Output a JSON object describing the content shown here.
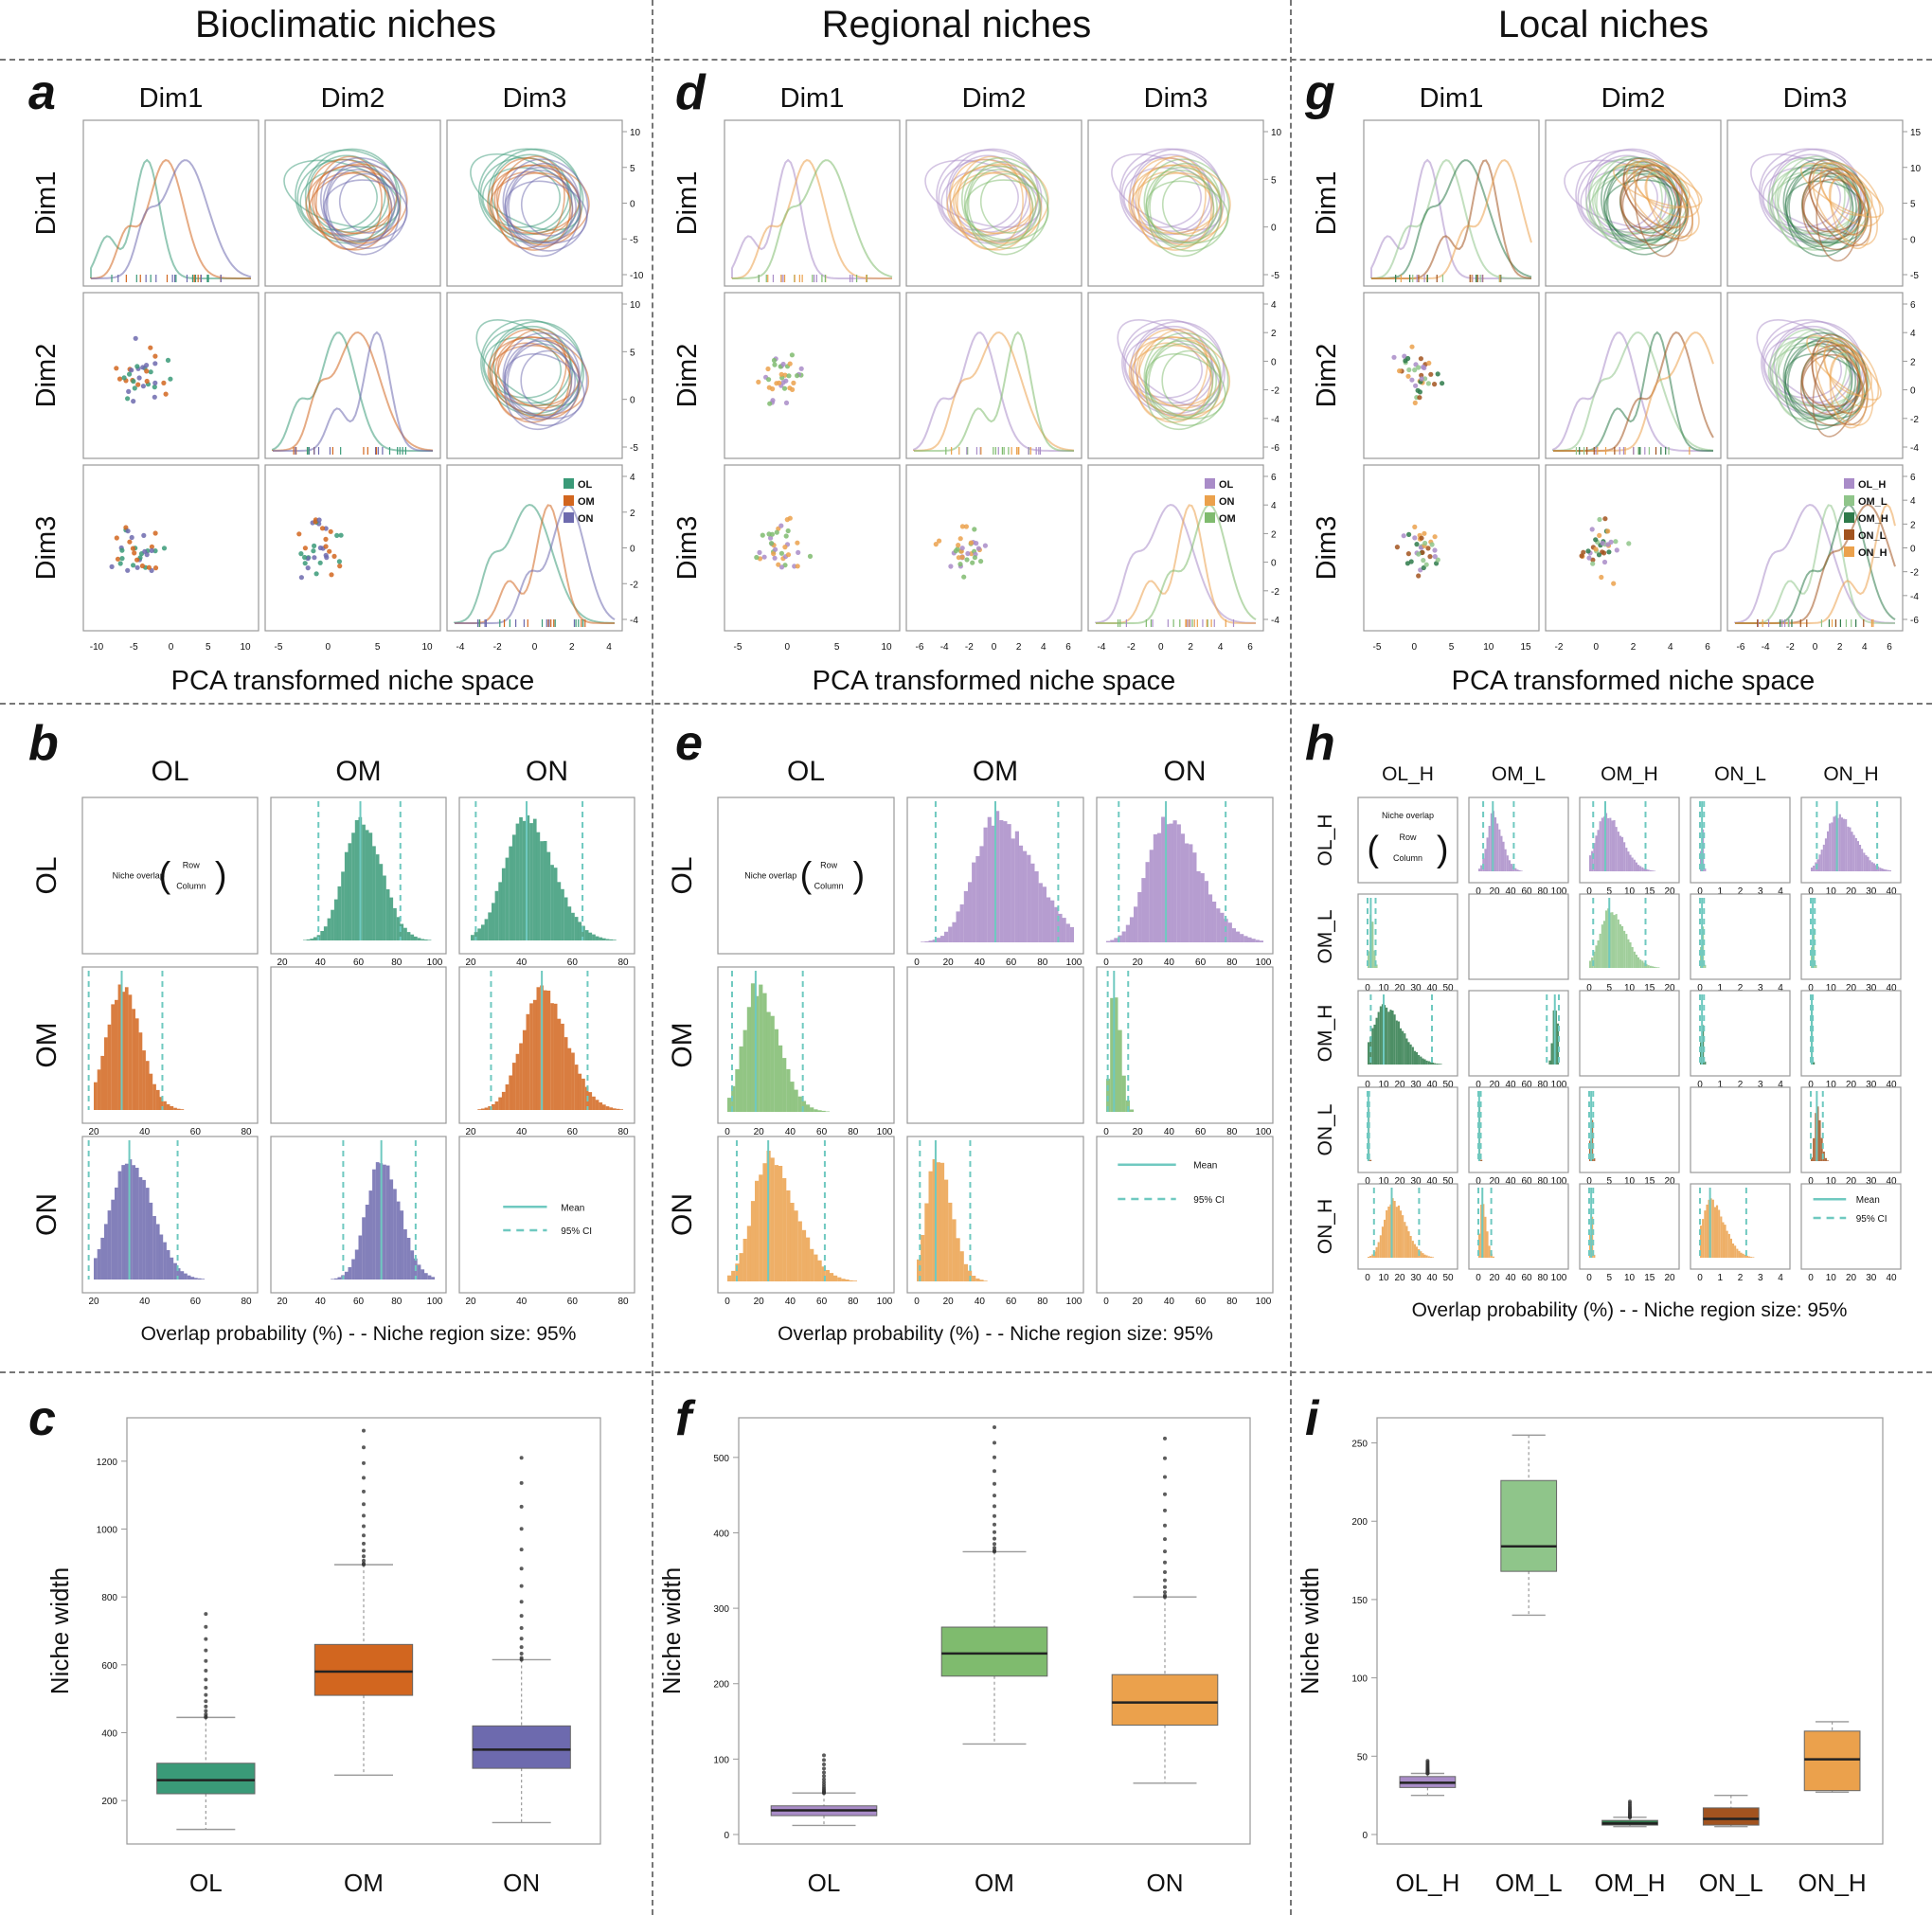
{
  "columns": [
    {
      "title": "Bioclimatic niches"
    },
    {
      "title": "Regional niches"
    },
    {
      "title": "Local niches"
    }
  ],
  "panel_labels": [
    "a",
    "b",
    "c",
    "d",
    "e",
    "f",
    "g",
    "h",
    "i"
  ],
  "dims": [
    "Dim1",
    "Dim2",
    "Dim3"
  ],
  "pca_xlabel": "PCA transformed niche space",
  "overlap_xlabel": "Overlap probability (%) - - Niche region size: 95%",
  "niche_width_ylabel": "Niche width",
  "overlap_note": {
    "label": "Niche overlap",
    "row": "Row",
    "column": "Column"
  },
  "legend_mean": "Mean",
  "legend_ci": "95% CI",
  "colors": {
    "OL": "#3a9a78",
    "OM": "#d2661f",
    "ON": "#6d6aae",
    "R_OL": "#a98cc8",
    "R_OM": "#7fbb6e",
    "R_ON": "#eba14c",
    "L_OL_H": "#a98cc8",
    "L_OM_L": "#8fc58a",
    "L_OM_H": "#2e7a4a",
    "L_ON_L": "#a2531f",
    "L_ON_H": "#eba14c"
  },
  "groups": {
    "bioclimatic": [
      "OL",
      "OM",
      "ON"
    ],
    "regional": [
      "OL",
      "ON",
      "OM"
    ],
    "local": [
      "OL_H",
      "OM_L",
      "OM_H",
      "ON_L",
      "ON_H"
    ]
  },
  "chart_data": [
    {
      "panel": "a",
      "type": "scatter",
      "title": "",
      "xlabel": "PCA transformed niche space",
      "x_ticks": [
        [
          "-10",
          "-5",
          "0",
          "5",
          "10"
        ],
        [
          "-5",
          "0",
          "5",
          "10"
        ],
        [
          "-4",
          "-2",
          "0",
          "2",
          "4"
        ]
      ],
      "y_ticks": [
        [
          "10",
          "5",
          "0",
          "-5",
          "-10"
        ],
        [
          "10",
          "5",
          "0",
          "-5"
        ],
        [
          "4",
          "2",
          "0",
          "-2",
          "-4"
        ]
      ],
      "legend": [
        "OL",
        "OM",
        "ON"
      ]
    },
    {
      "panel": "b",
      "type": "bar",
      "xlabel": "Overlap probability (%) - - Niche region size: 95%",
      "rows": [
        "OL",
        "OM",
        "ON"
      ],
      "cols": [
        "OL",
        "OM",
        "ON"
      ],
      "x_ticks": [
        [
          "20",
          "40",
          "60",
          "80"
        ],
        [
          "20",
          "40",
          "60",
          "80",
          "100"
        ],
        [
          "20",
          "40",
          "60",
          "80"
        ]
      ],
      "cells": [
        {
          "r": 1,
          "c": 0,
          "mean": 31,
          "ci": [
            18,
            47
          ]
        },
        {
          "r": 2,
          "c": 0,
          "mean": 34,
          "ci": [
            18,
            53
          ]
        },
        {
          "r": 0,
          "c": 1,
          "mean": 61,
          "ci": [
            39,
            82
          ]
        },
        {
          "r": 2,
          "c": 1,
          "mean": 72,
          "ci": [
            52,
            90
          ]
        },
        {
          "r": 0,
          "c": 2,
          "mean": 42,
          "ci": [
            22,
            64
          ]
        },
        {
          "r": 1,
          "c": 2,
          "mean": 48,
          "ci": [
            28,
            66
          ]
        }
      ]
    },
    {
      "panel": "c",
      "type": "box",
      "ylabel": "Niche width",
      "categories": [
        "OL",
        "OM",
        "ON"
      ],
      "y_ticks": [
        "1200",
        "1000",
        "800",
        "600",
        "400",
        "200"
      ],
      "ylim": [
        100,
        1300
      ],
      "series": [
        {
          "name": "OL",
          "min": 115,
          "q1": 220,
          "median": 260,
          "q3": 310,
          "max": 445,
          "outlier_max": 750
        },
        {
          "name": "OM",
          "min": 275,
          "q1": 510,
          "median": 580,
          "q3": 660,
          "max": 895,
          "outlier_max": 1290
        },
        {
          "name": "ON",
          "min": 135,
          "q1": 295,
          "median": 350,
          "q3": 420,
          "max": 615,
          "outlier_max": 1210
        }
      ]
    },
    {
      "panel": "d",
      "type": "scatter",
      "xlabel": "PCA transformed niche space",
      "x_ticks": [
        [
          "-5",
          "0",
          "5",
          "10"
        ],
        [
          "-6",
          "-4",
          "-2",
          "0",
          "2",
          "4",
          "6"
        ],
        [
          "-4",
          "-2",
          "0",
          "2",
          "4",
          "6"
        ]
      ],
      "y_ticks": [
        [
          "10",
          "5",
          "0",
          "-5"
        ],
        [
          "4",
          "2",
          "0",
          "-2",
          "-4",
          "-6"
        ],
        [
          "6",
          "4",
          "2",
          "0",
          "-2",
          "-4"
        ]
      ],
      "legend": [
        "OL",
        "ON",
        "OM"
      ]
    },
    {
      "panel": "e",
      "type": "bar",
      "xlabel": "Overlap probability (%) - - Niche region size: 95%",
      "rows": [
        "OL",
        "OM",
        "ON"
      ],
      "cols": [
        "OL",
        "OM",
        "ON"
      ],
      "x_ticks": [
        [
          "0",
          "20",
          "40",
          "60",
          "80",
          "100"
        ],
        [
          "0",
          "20",
          "40",
          "60",
          "80",
          "100"
        ],
        [
          "0",
          "20",
          "40",
          "60",
          "80",
          "100"
        ]
      ],
      "cells": [
        {
          "r": 1,
          "c": 0,
          "mean": 18,
          "ci": [
            3,
            48
          ]
        },
        {
          "r": 2,
          "c": 0,
          "mean": 26,
          "ci": [
            6,
            62
          ]
        },
        {
          "r": 0,
          "c": 1,
          "mean": 50,
          "ci": [
            12,
            90
          ]
        },
        {
          "r": 2,
          "c": 1,
          "mean": 12,
          "ci": [
            2,
            34
          ]
        },
        {
          "r": 0,
          "c": 2,
          "mean": 38,
          "ci": [
            8,
            76
          ]
        },
        {
          "r": 1,
          "c": 2,
          "mean": 5,
          "ci": [
            1,
            14
          ]
        }
      ]
    },
    {
      "panel": "f",
      "type": "box",
      "ylabel": "Niche width",
      "categories": [
        "OL",
        "OM",
        "ON"
      ],
      "y_ticks": [
        "500",
        "400",
        "300",
        "200",
        "100",
        "0"
      ],
      "ylim": [
        0,
        540
      ],
      "series": [
        {
          "name": "OL",
          "min": 12,
          "q1": 25,
          "median": 32,
          "q3": 38,
          "max": 55,
          "outlier_max": 105
        },
        {
          "name": "OM",
          "min": 120,
          "q1": 210,
          "median": 240,
          "q3": 275,
          "max": 375,
          "outlier_max": 540
        },
        {
          "name": "ON",
          "min": 68,
          "q1": 145,
          "median": 175,
          "q3": 212,
          "max": 315,
          "outlier_max": 525
        }
      ]
    },
    {
      "panel": "g",
      "type": "scatter",
      "xlabel": "PCA transformed niche space",
      "x_ticks": [
        [
          "-5",
          "0",
          "5",
          "10",
          "15"
        ],
        [
          "-2",
          "0",
          "2",
          "4",
          "6"
        ],
        [
          "-6",
          "-4",
          "-2",
          "0",
          "2",
          "4",
          "6"
        ]
      ],
      "y_ticks": [
        [
          "15",
          "10",
          "5",
          "0",
          "-5"
        ],
        [
          "6",
          "4",
          "2",
          "0",
          "-2",
          "-4"
        ],
        [
          "6",
          "4",
          "2",
          "0",
          "-2",
          "-4",
          "-6"
        ]
      ],
      "legend": [
        "OL_H",
        "OM_L",
        "OM_H",
        "ON_L",
        "ON_H"
      ]
    },
    {
      "panel": "h",
      "type": "bar",
      "xlabel": "Overlap probability (%) - - Niche region size: 95%",
      "rows": [
        "OL_H",
        "OM_L",
        "OM_H",
        "ON_L",
        "ON_H"
      ],
      "cols": [
        "OL_H",
        "OM_L",
        "OM_H",
        "ON_L",
        "ON_H"
      ],
      "x_ticks": [
        [
          "0",
          "10",
          "20",
          "30",
          "40",
          "50"
        ],
        [
          "0",
          "20",
          "40",
          "60",
          "80",
          "100"
        ],
        [
          "0",
          "5",
          "10",
          "15",
          "20"
        ],
        [
          "0",
          "1",
          "2",
          "3",
          "4"
        ],
        [
          "0",
          "10",
          "20",
          "30",
          "40"
        ]
      ],
      "cells": [
        {
          "r": 0,
          "c": 1,
          "mean": 18,
          "ci": [
            6,
            44
          ]
        },
        {
          "r": 0,
          "c": 2,
          "mean": 4,
          "ci": [
            1,
            14
          ]
        },
        {
          "r": 0,
          "c": 3,
          "mean": 0.1,
          "ci": [
            0,
            0.2
          ]
        },
        {
          "r": 0,
          "c": 4,
          "mean": 13,
          "ci": [
            3,
            33
          ]
        },
        {
          "r": 1,
          "c": 0,
          "mean": 2,
          "ci": [
            0,
            5
          ]
        },
        {
          "r": 1,
          "c": 2,
          "mean": 5,
          "ci": [
            1,
            14
          ]
        },
        {
          "r": 1,
          "c": 3,
          "mean": 0.1,
          "ci": [
            0,
            0.2
          ]
        },
        {
          "r": 1,
          "c": 4,
          "mean": 1,
          "ci": [
            0,
            2
          ]
        },
        {
          "r": 2,
          "c": 0,
          "mean": 10,
          "ci": [
            2,
            40
          ]
        },
        {
          "r": 2,
          "c": 1,
          "mean": 95,
          "ci": [
            85,
            100
          ]
        },
        {
          "r": 2,
          "c": 3,
          "mean": 0.1,
          "ci": [
            0,
            0.2
          ]
        },
        {
          "r": 2,
          "c": 4,
          "mean": 0.5,
          "ci": [
            0,
            1
          ]
        },
        {
          "r": 3,
          "c": 0,
          "mean": 0.5,
          "ci": [
            0,
            1
          ]
        },
        {
          "r": 3,
          "c": 1,
          "mean": 1,
          "ci": [
            0,
            3
          ]
        },
        {
          "r": 3,
          "c": 2,
          "mean": 0.5,
          "ci": [
            0,
            1
          ]
        },
        {
          "r": 3,
          "c": 4,
          "mean": 3,
          "ci": [
            0,
            6
          ]
        },
        {
          "r": 4,
          "c": 0,
          "mean": 15,
          "ci": [
            4,
            32
          ]
        },
        {
          "r": 4,
          "c": 1,
          "mean": 5,
          "ci": [
            0,
            16
          ]
        },
        {
          "r": 4,
          "c": 2,
          "mean": 0.5,
          "ci": [
            0,
            1
          ]
        },
        {
          "r": 4,
          "c": 3,
          "mean": 0.5,
          "ci": [
            0,
            2.3
          ]
        }
      ]
    },
    {
      "panel": "i",
      "type": "box",
      "ylabel": "Niche width",
      "categories": [
        "OL_H",
        "OM_L",
        "OM_H",
        "ON_L",
        "ON_H"
      ],
      "y_ticks": [
        "250",
        "200",
        "150",
        "100",
        "50",
        "0"
      ],
      "ylim": [
        0,
        260
      ],
      "series": [
        {
          "name": "OL_H",
          "min": 25,
          "q1": 30,
          "median": 33,
          "q3": 37,
          "max": 39,
          "outlier_max": 47
        },
        {
          "name": "OM_L",
          "min": 140,
          "q1": 168,
          "median": 184,
          "q3": 226,
          "max": 255,
          "outlier_max": 255
        },
        {
          "name": "OM_H",
          "min": 5,
          "q1": 6,
          "median": 7,
          "q3": 9,
          "max": 11,
          "outlier_max": 21
        },
        {
          "name": "ON_L",
          "min": 5,
          "q1": 6,
          "median": 10,
          "q3": 17,
          "max": 25,
          "outlier_max": 25
        },
        {
          "name": "ON_H",
          "min": 27,
          "q1": 28,
          "median": 48,
          "q3": 66,
          "max": 72,
          "outlier_max": 72
        }
      ]
    }
  ]
}
